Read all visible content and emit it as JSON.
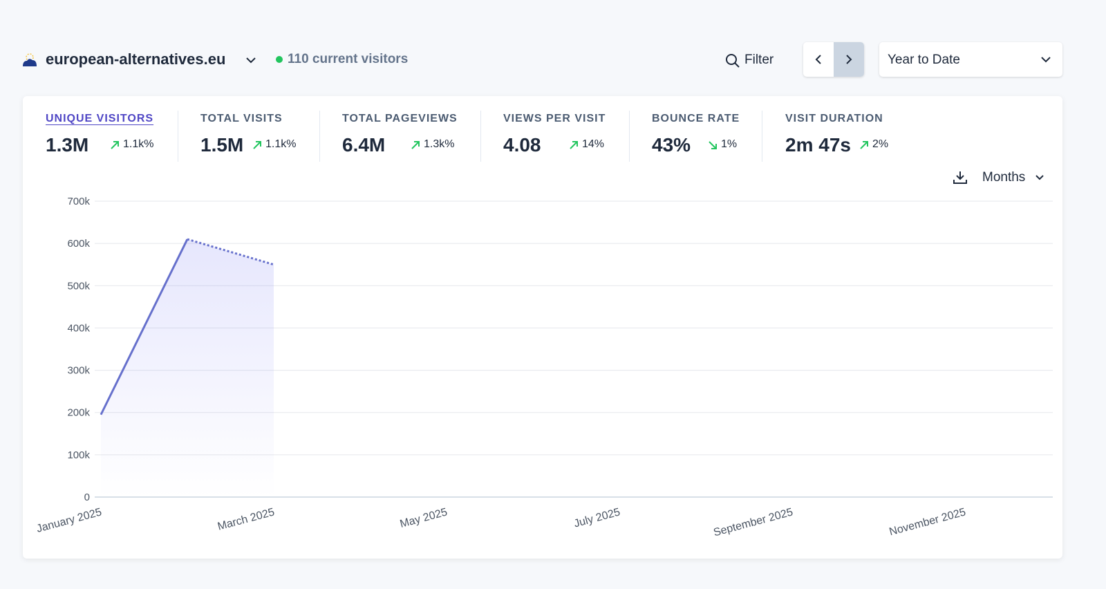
{
  "header": {
    "site": "european-alternatives.eu",
    "current_visitors": "110 current visitors"
  },
  "controls": {
    "filter": "Filter",
    "period": "Year to Date",
    "interval": "Months"
  },
  "stats": [
    {
      "label": "UNIQUE VISITORS",
      "value": "1.3M",
      "change": "1.1k%",
      "trend": "up"
    },
    {
      "label": "TOTAL VISITS",
      "value": "1.5M",
      "change": "1.1k%",
      "trend": "up"
    },
    {
      "label": "TOTAL PAGEVIEWS",
      "value": "6.4M",
      "change": "1.3k%",
      "trend": "up"
    },
    {
      "label": "VIEWS PER VISIT",
      "value": "4.08",
      "change": "14%",
      "trend": "up"
    },
    {
      "label": "BOUNCE RATE",
      "value": "43%",
      "change": "1%",
      "trend": "down"
    },
    {
      "label": "VISIT DURATION",
      "value": "2m 47s",
      "change": "2%",
      "trend": "up"
    }
  ],
  "chart_data": {
    "type": "line",
    "categories": [
      "January 2025",
      null,
      "March 2025",
      null,
      "May 2025",
      null,
      "July 2025",
      null,
      "September 2025",
      null,
      "November 2025",
      null
    ],
    "values": [
      195000,
      610000,
      550000,
      null,
      null,
      null,
      null,
      null,
      null,
      null,
      null,
      null
    ],
    "color": "#6670cc",
    "dashed_last_segment": true,
    "ylim": [
      0,
      700000
    ],
    "yticks": [
      0,
      {
        "value": 100000,
        "label": "100k"
      },
      {
        "value": 200000,
        "label": "200k"
      },
      {
        "value": 300000,
        "label": "300k"
      },
      {
        "value": 400000,
        "label": "400k"
      },
      {
        "value": 500000,
        "label": "500k"
      },
      {
        "value": 600000,
        "label": "600k"
      },
      {
        "value": 700000,
        "label": "700k"
      }
    ],
    "grid": true
  }
}
